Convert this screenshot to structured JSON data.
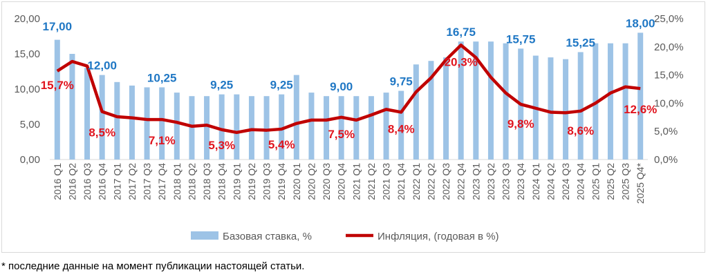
{
  "chart_data": {
    "type": "bar+line",
    "categories": [
      "2016 Q1",
      "2016 Q2",
      "2016 Q3",
      "2016 Q4",
      "2017 Q1",
      "2017 Q2",
      "2017 Q3",
      "2017 Q4",
      "2018 Q1",
      "2018 Q2",
      "2018 Q3",
      "2018 Q4",
      "2019 Q1",
      "2019 Q2",
      "2019 Q3",
      "2019 Q4",
      "2020 Q1",
      "2020 Q2",
      "2020 Q3",
      "2020 Q4",
      "2021 Q1",
      "2021 Q2",
      "2021 Q3",
      "2021 Q4",
      "2022 Q1",
      "2022 Q2",
      "2022 Q3",
      "2022 Q4",
      "2023 Q1",
      "2023 Q2",
      "2023 Q3",
      "2023 Q4",
      "2024 Q1",
      "2024 Q2",
      "2024 Q3",
      "2024 Q4",
      "2025 Q1",
      "2025 Q2",
      "2025 Q3",
      "2025 Q4*"
    ],
    "series": [
      {
        "name": "Базовая ставка, %",
        "type": "bar",
        "axis": "left",
        "color": "#9dc3e6",
        "values": [
          17,
          15,
          13,
          12,
          11,
          10.5,
          10.25,
          10.25,
          9.5,
          9,
          9,
          9.25,
          9.25,
          9,
          9,
          9.25,
          12,
          9.5,
          9,
          9,
          9,
          9,
          9.5,
          9.75,
          13.5,
          14,
          14.5,
          16.75,
          16.75,
          16.75,
          16.5,
          15.75,
          14.75,
          14.5,
          14.25,
          15.25,
          16.5,
          16.5,
          16.5,
          18
        ],
        "labels": {
          "0": "17,00",
          "3": "12,00",
          "7": "10,25",
          "11": "9,25",
          "15": "9,25",
          "19": "9,00",
          "23": "9,75",
          "27": "16,75",
          "31": "15,75",
          "35": "15,25",
          "39": "18,00"
        }
      },
      {
        "name": "Инфляция, (годовая в %)",
        "type": "line",
        "axis": "right",
        "color": "#c00000",
        "values": [
          15.7,
          17.4,
          16.6,
          8.5,
          7.6,
          7.4,
          7.1,
          7.1,
          6.6,
          5.9,
          6.1,
          5.3,
          4.8,
          5.3,
          5.2,
          5.4,
          6.4,
          7.0,
          7.0,
          7.5,
          7.0,
          7.9,
          8.9,
          8.4,
          12.0,
          14.5,
          17.7,
          20.3,
          18.1,
          14.6,
          11.8,
          9.8,
          9.1,
          8.4,
          8.3,
          8.6,
          10.0,
          11.8,
          12.9,
          12.6
        ],
        "labels": {
          "0": "15,7%",
          "3": "8,5%",
          "7": "7,1%",
          "11": "5,3%",
          "15": "5,4%",
          "19": "7,5%",
          "23": "8,4%",
          "27": "20,3%",
          "31": "9,8%",
          "35": "8,6%",
          "39": "12,6%"
        }
      }
    ],
    "y_left": {
      "range": [
        0,
        20
      ],
      "ticks": [
        "0,00",
        "5,00",
        "10,00",
        "15,00",
        "20,00"
      ]
    },
    "y_right": {
      "range": [
        0,
        25
      ],
      "ticks": [
        "0,0%",
        "5,0%",
        "10,0%",
        "15,0%",
        "20,0%",
        "25,0%"
      ]
    },
    "legend": "bottom",
    "grid": false
  },
  "footnote": "* последние данные на момент публикации настоящей статьи."
}
